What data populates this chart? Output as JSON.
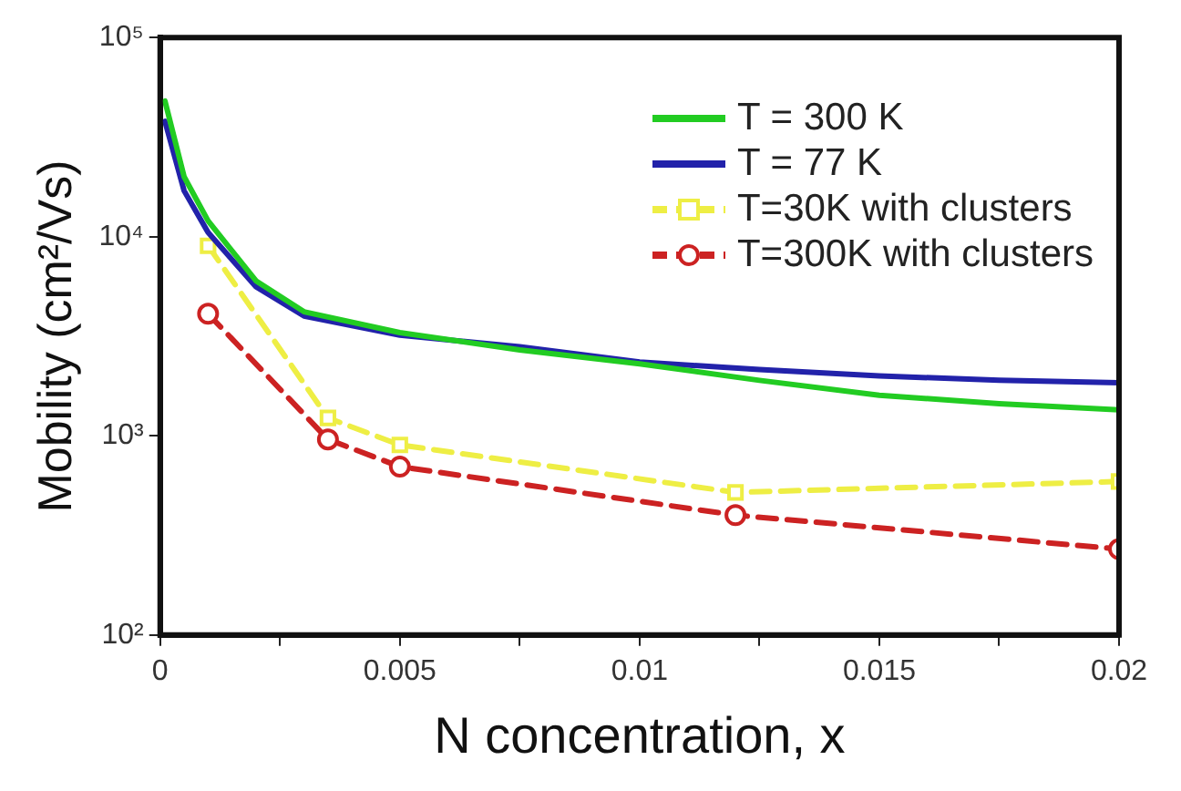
{
  "chart_data": {
    "type": "line",
    "xlabel": "N concentration, x",
    "ylabel": "Mobility (cm²/Vs)",
    "log": "y",
    "grid": false,
    "legend": "top right",
    "xlim": [
      0,
      0.02
    ],
    "ylim": [
      100,
      100000
    ],
    "xticks": [
      0,
      {
        "value": 0.0025,
        "label": null
      },
      0.005,
      {
        "value": 0.0075,
        "label": null
      },
      0.01,
      {
        "value": 0.0125,
        "label": null
      },
      0.015,
      {
        "value": 0.0175,
        "label": null
      },
      0.02
    ],
    "yticks": [
      {
        "value": 100,
        "label": "10²"
      },
      {
        "value": 1000,
        "label": "10³"
      },
      {
        "value": 10000,
        "label": "10⁴"
      },
      {
        "value": 100000,
        "label": "10⁵"
      }
    ],
    "series": [
      {
        "name": "T = 300 K",
        "color": "#22cc22",
        "marker": "none",
        "line_style": "solid",
        "x": [
          0.0001,
          0.0005,
          0.001,
          0.002,
          0.003,
          0.005,
          0.0075,
          0.01,
          0.0125,
          0.015,
          0.0175,
          0.02
        ],
        "values": [
          48000,
          20000,
          12000,
          6000,
          4200,
          3300,
          2700,
          2300,
          1900,
          1600,
          1450,
          1350
        ]
      },
      {
        "name": "T = 77 K",
        "color": "#2222aa",
        "marker": "none",
        "line_style": "solid",
        "x": [
          0.0001,
          0.0005,
          0.001,
          0.002,
          0.003,
          0.005,
          0.0075,
          0.01,
          0.0125,
          0.015,
          0.0175,
          0.02
        ],
        "values": [
          38000,
          17000,
          10500,
          5600,
          4000,
          3200,
          2800,
          2350,
          2150,
          2000,
          1900,
          1850
        ]
      },
      {
        "name": "T=30K with clusters",
        "color": "#eeee44",
        "marker": "square",
        "line_style": "dashed",
        "x": [
          0.001,
          0.0035,
          0.005,
          0.012,
          0.02
        ],
        "values": [
          9000,
          1230,
          900,
          520,
          590
        ]
      },
      {
        "name": "T=300K with clusters",
        "color": "#cc2222",
        "marker": "circle",
        "line_style": "dashed",
        "x": [
          0.001,
          0.0035,
          0.005,
          0.012,
          0.02
        ],
        "values": [
          4100,
          960,
          700,
          400,
          270
        ]
      }
    ]
  }
}
